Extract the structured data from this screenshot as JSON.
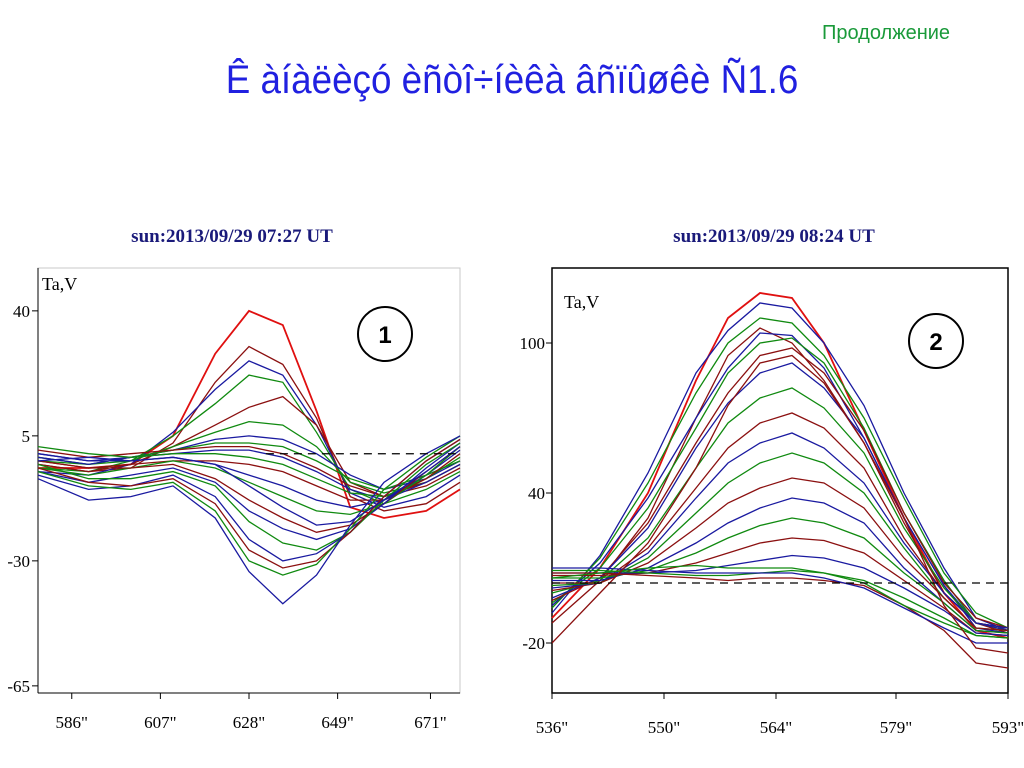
{
  "header": {
    "continue_label": "Продолжение",
    "title": "Ê àíàëèçó èñòî÷íèêà âñïûøêè Ñ1.6"
  },
  "chart_data": [
    {
      "type": "line",
      "title": "sun:2013/09/29 07:27  UT",
      "ylabel": "Ta,V",
      "xlabel": "",
      "badge": "1",
      "x_ticks": [
        "586\"",
        "607\"",
        "628\"",
        "649\"",
        "671\""
      ],
      "x_tick_values": [
        586,
        607,
        628,
        649,
        671
      ],
      "y_ticks": [
        "40",
        "5",
        "-30",
        "-65"
      ],
      "y_tick_values": [
        40,
        5,
        -30,
        -65
      ],
      "xlim": [
        578,
        678
      ],
      "ylim": [
        -67,
        52
      ],
      "reference_line": 0,
      "x": [
        578,
        590,
        600,
        610,
        620,
        628,
        636,
        644,
        652,
        660,
        670,
        678
      ],
      "series": [
        {
          "color": "#e01010",
          "values": [
            -4,
            -4,
            -3,
            5,
            28,
            40,
            36,
            12,
            -15,
            -18,
            -16,
            -10
          ]
        },
        {
          "color": "#8b1010",
          "values": [
            -3,
            -5,
            -4,
            3,
            20,
            30,
            25,
            10,
            -12,
            -16,
            -14,
            -8
          ]
        },
        {
          "color": "#1a1aa0",
          "values": [
            -5,
            -6,
            -3,
            6,
            18,
            26,
            22,
            8,
            -11,
            -15,
            -12,
            -6
          ]
        },
        {
          "color": "#108a10",
          "values": [
            -4,
            -5,
            -2,
            5,
            14,
            22,
            20,
            6,
            -10,
            -14,
            -10,
            -5
          ]
        },
        {
          "color": "#8b1010",
          "values": [
            -2,
            -4,
            -3,
            2,
            8,
            13,
            16,
            8,
            -8,
            -12,
            -9,
            -4
          ]
        },
        {
          "color": "#108a10",
          "values": [
            -1,
            -3,
            -2,
            2,
            6,
            9,
            8,
            2,
            -8,
            -11,
            -8,
            -3
          ]
        },
        {
          "color": "#1a1aa0",
          "values": [
            0,
            -2,
            -1,
            1,
            4,
            5,
            4,
            0,
            -6,
            -10,
            -7,
            -2
          ]
        },
        {
          "color": "#108a10",
          "values": [
            -2,
            -3,
            -1,
            1,
            3,
            3,
            2,
            -2,
            -7,
            -10,
            -6,
            -2
          ]
        },
        {
          "color": "#8b1010",
          "values": [
            1,
            -1,
            0,
            1,
            2,
            2,
            0,
            -4,
            -9,
            -12,
            -8,
            -3
          ]
        },
        {
          "color": "#1a1aa0",
          "values": [
            -1,
            -3,
            -1,
            0,
            1,
            1,
            -1,
            -5,
            -10,
            -13,
            -8,
            -3
          ]
        },
        {
          "color": "#108a10",
          "values": [
            2,
            0,
            -1,
            0,
            0,
            -1,
            -3,
            -7,
            -11,
            -12,
            -7,
            -1
          ]
        },
        {
          "color": "#8b1010",
          "values": [
            -3,
            -5,
            -3,
            -2,
            -2,
            -3,
            -5,
            -9,
            -13,
            -13,
            -7,
            0
          ]
        },
        {
          "color": "#1a1aa0",
          "values": [
            0,
            -2,
            -2,
            -1,
            -3,
            -6,
            -9,
            -13,
            -15,
            -13,
            -6,
            1
          ]
        },
        {
          "color": "#108a10",
          "values": [
            -4,
            -6,
            -4,
            -2,
            -4,
            -8,
            -12,
            -16,
            -17,
            -14,
            -6,
            2
          ]
        },
        {
          "color": "#8b1010",
          "values": [
            -2,
            -4,
            -4,
            -3,
            -7,
            -13,
            -18,
            -22,
            -20,
            -14,
            -5,
            2
          ]
        },
        {
          "color": "#1a1aa0",
          "values": [
            -5,
            -8,
            -6,
            -4,
            -8,
            -16,
            -21,
            -24,
            -21,
            -14,
            -4,
            3
          ]
        },
        {
          "color": "#108a10",
          "values": [
            -3,
            -7,
            -7,
            -5,
            -9,
            -19,
            -25,
            -27,
            -22,
            -13,
            -3,
            3
          ]
        },
        {
          "color": "#1a1aa0",
          "values": [
            -6,
            -10,
            -9,
            -6,
            -12,
            -24,
            -30,
            -28,
            -22,
            -12,
            -2,
            4
          ]
        },
        {
          "color": "#8b1010",
          "values": [
            -4,
            -8,
            -9,
            -7,
            -14,
            -27,
            -32,
            -30,
            -22,
            -12,
            -2,
            4
          ]
        },
        {
          "color": "#108a10",
          "values": [
            -5,
            -9,
            -10,
            -8,
            -16,
            -30,
            -34,
            -31,
            -21,
            -10,
            -1,
            5
          ]
        },
        {
          "color": "#1a1aa0",
          "values": [
            -7,
            -13,
            -12,
            -9,
            -18,
            -33,
            -42,
            -34,
            -20,
            -8,
            0,
            5
          ]
        },
        {
          "color": "#1a1aa0",
          "values": [
            -2,
            -1,
            -2,
            -1,
            -3,
            -9,
            -15,
            -20,
            -19,
            -13,
            -5,
            2
          ]
        }
      ]
    },
    {
      "type": "line",
      "title": "sun:2013/09/29 08:24 UT",
      "ylabel": "Ta,V",
      "xlabel": "",
      "badge": "2",
      "x_ticks": [
        "536\"",
        "550\"",
        "564\"",
        "579\"",
        "593\""
      ],
      "x_tick_values": [
        536,
        550,
        564,
        579,
        593
      ],
      "y_ticks": [
        "100",
        "40",
        "-20"
      ],
      "y_tick_values": [
        100,
        40,
        -20
      ],
      "xlim": [
        536,
        593
      ],
      "ylim": [
        -40,
        130
      ],
      "reference_line": 4,
      "x": [
        536,
        542,
        548,
        554,
        558,
        562,
        566,
        570,
        575,
        580,
        585,
        589,
        593
      ],
      "series": [
        {
          "color": "#e01010",
          "values": [
            -10,
            10,
            40,
            85,
            110,
            120,
            118,
            100,
            65,
            30,
            0,
            -15,
            -18
          ]
        },
        {
          "color": "#1a1aa0",
          "values": [
            -8,
            15,
            48,
            88,
            105,
            116,
            114,
            100,
            75,
            40,
            10,
            -10,
            -15
          ]
        },
        {
          "color": "#108a10",
          "values": [
            -6,
            14,
            44,
            80,
            100,
            110,
            108,
            95,
            70,
            38,
            8,
            -8,
            -14
          ]
        },
        {
          "color": "#8b1010",
          "values": [
            -12,
            5,
            30,
            70,
            95,
            106,
            100,
            85,
            60,
            28,
            0,
            -12,
            -16
          ]
        },
        {
          "color": "#1a1aa0",
          "values": [
            -5,
            12,
            38,
            70,
            90,
            104,
            103,
            90,
            62,
            30,
            3,
            -14,
            -16
          ]
        },
        {
          "color": "#108a10",
          "values": [
            -4,
            10,
            34,
            66,
            88,
            100,
            102,
            92,
            66,
            32,
            5,
            -12,
            -15
          ]
        },
        {
          "color": "#8b1010",
          "values": [
            -3,
            6,
            28,
            60,
            80,
            95,
            98,
            88,
            65,
            32,
            4,
            -10,
            -14
          ]
        },
        {
          "color": "#1a1aa0",
          "values": [
            -2,
            6,
            26,
            58,
            76,
            88,
            92,
            82,
            62,
            30,
            3,
            -12,
            -15
          ]
        },
        {
          "color": "#108a10",
          "values": [
            0,
            5,
            22,
            50,
            68,
            78,
            82,
            74,
            56,
            26,
            2,
            -12,
            -14
          ]
        },
        {
          "color": "#8b1010",
          "values": [
            1,
            4,
            18,
            42,
            58,
            68,
            72,
            66,
            50,
            22,
            0,
            -12,
            -14
          ]
        },
        {
          "color": "#1a1aa0",
          "values": [
            2,
            4,
            16,
            38,
            52,
            60,
            64,
            58,
            44,
            20,
            0,
            -12,
            -14
          ]
        },
        {
          "color": "#108a10",
          "values": [
            3,
            4,
            14,
            32,
            44,
            52,
            56,
            52,
            40,
            18,
            -2,
            -14,
            -15
          ]
        },
        {
          "color": "#8b1010",
          "values": [
            4,
            4,
            12,
            26,
            36,
            42,
            46,
            44,
            34,
            14,
            -2,
            -14,
            -15
          ]
        },
        {
          "color": "#1a1aa0",
          "values": [
            5,
            5,
            10,
            20,
            28,
            34,
            38,
            36,
            28,
            10,
            -4,
            -15,
            -16
          ]
        },
        {
          "color": "#108a10",
          "values": [
            6,
            6,
            9,
            16,
            22,
            27,
            30,
            28,
            22,
            8,
            -4,
            -15,
            -16
          ]
        },
        {
          "color": "#8b1010",
          "values": [
            7,
            7,
            8,
            12,
            16,
            20,
            22,
            21,
            16,
            5,
            -6,
            -16,
            -17
          ]
        },
        {
          "color": "#1a1aa0",
          "values": [
            8,
            8,
            8,
            9,
            11,
            13,
            15,
            14,
            10,
            2,
            -7,
            -16,
            -17
          ]
        },
        {
          "color": "#108a10",
          "values": [
            9,
            9,
            8,
            7,
            7,
            8,
            9,
            8,
            5,
            -2,
            -10,
            -17,
            -18
          ]
        },
        {
          "color": "#8b1010",
          "values": [
            8,
            8,
            7,
            6,
            5,
            6,
            6,
            5,
            3,
            -5,
            -15,
            -28,
            -30
          ]
        },
        {
          "color": "#1a1aa0",
          "values": [
            10,
            10,
            9,
            8,
            8,
            8,
            8,
            6,
            2,
            -6,
            -14,
            -20,
            -20
          ]
        },
        {
          "color": "#108a10",
          "values": [
            6,
            8,
            10,
            11,
            10,
            10,
            10,
            8,
            4,
            -5,
            -12,
            -17,
            -18
          ]
        },
        {
          "color": "#8b1010",
          "values": [
            -20,
            0,
            20,
            50,
            75,
            92,
            95,
            84,
            60,
            30,
            -5,
            -22,
            -24
          ]
        }
      ]
    }
  ]
}
